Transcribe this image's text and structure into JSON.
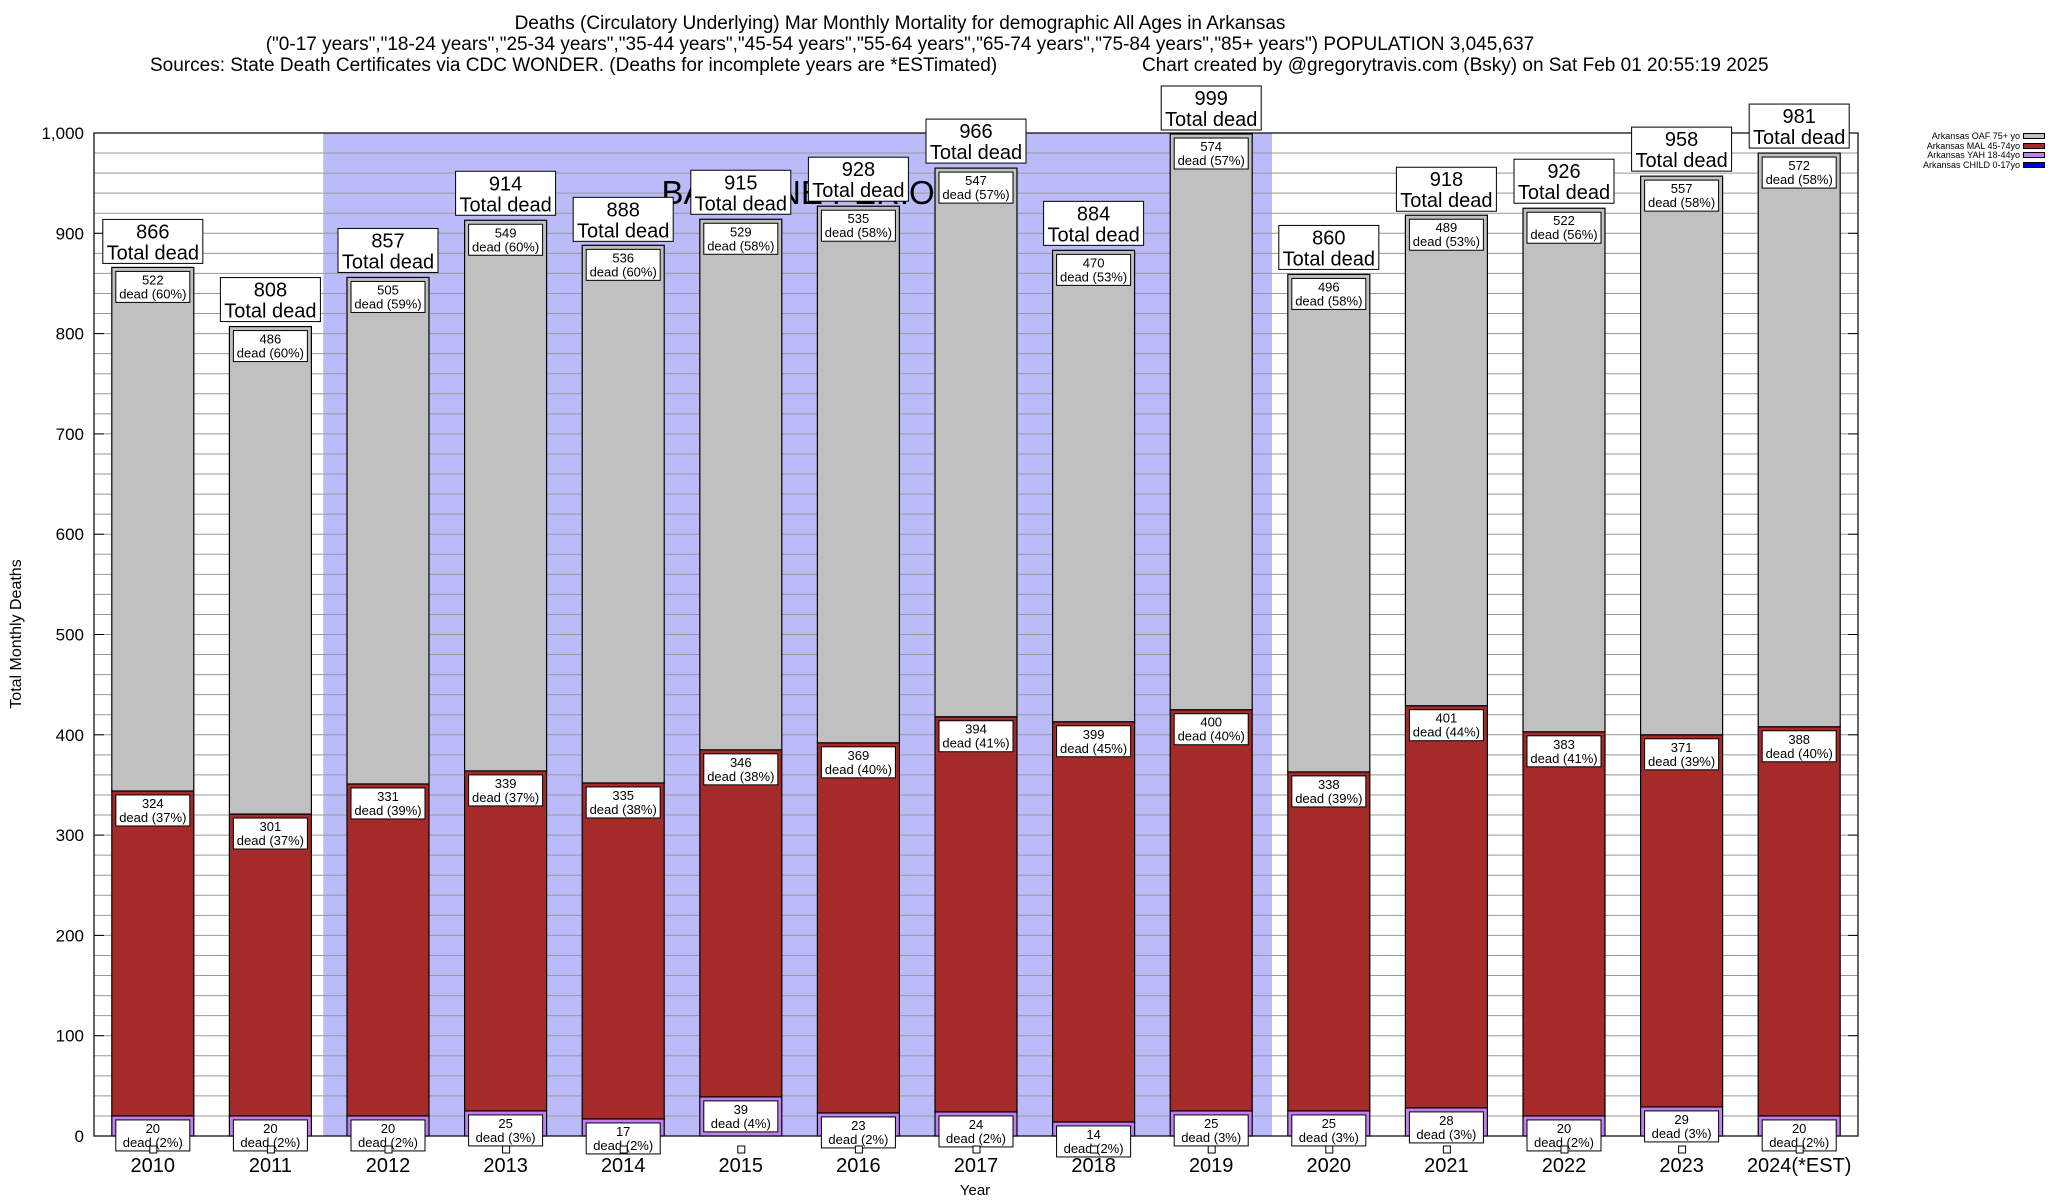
{
  "header": {
    "title": "Deaths (Circulatory Underlying) Mar Monthly Mortality for demographic All Ages in Arkansas",
    "subtitle": "(\"0-17 years\",\"18-24 years\",\"25-34 years\",\"35-44 years\",\"45-54 years\",\"55-64 years\",\"65-74 years\",\"75-84 years\",\"85+ years\") POPULATION 3,045,637",
    "sources": "Sources: State Death Certificates via CDC WONDER. (Deaths for incomplete years are *ESTimated)",
    "credit": "Chart created by @gregorytravis.com (Bsky) on Sat Feb 01 20:55:19 2025"
  },
  "chart_data": {
    "type": "bar",
    "stacked": true,
    "title": "Deaths (Circulatory Underlying) Mar Monthly Mortality for demographic All Ages in Arkansas",
    "xlabel": "Year",
    "ylabel": "Total Monthly Deaths",
    "ylim": [
      0,
      1000
    ],
    "yticks": [
      0,
      100,
      200,
      300,
      400,
      500,
      600,
      700,
      800,
      900,
      1000
    ],
    "ytick_labels": [
      "0",
      "100",
      "200",
      "300",
      "400",
      "500",
      "600",
      "700",
      "800",
      "900",
      "1,000"
    ],
    "grid": true,
    "legend_position": "top-right",
    "categories": [
      "2010",
      "2011",
      "2012",
      "2013",
      "2014",
      "2015",
      "2016",
      "2017",
      "2018",
      "2019",
      "2020",
      "2021",
      "2022",
      "2023",
      "2024(*EST)"
    ],
    "baseline_period": {
      "label": "BASELINE PERIOD",
      "start": "2012",
      "end": "2019",
      "color": "#bbbbf9"
    },
    "total_label_suffix": "Total dead",
    "segment_label_suffix": "dead",
    "totals": [
      866,
      808,
      857,
      914,
      888,
      915,
      928,
      966,
      884,
      999,
      860,
      918,
      926,
      958,
      981
    ],
    "series": [
      {
        "name": "Arkansas CHILD 0-17yo",
        "color": "#0000cc",
        "values": [
          0,
          0,
          0,
          0,
          0,
          0,
          0,
          0,
          0,
          0,
          0,
          0,
          0,
          0,
          0
        ],
        "pct": []
      },
      {
        "name": "Arkansas YAH 18-44yo",
        "color": "#c080f0",
        "values": [
          20,
          20,
          20,
          25,
          17,
          39,
          23,
          24,
          14,
          25,
          25,
          28,
          20,
          29,
          20
        ],
        "pct": [
          "2%",
          "2%",
          "2%",
          "3%",
          "2%",
          "4%",
          "2%",
          "2%",
          "2%",
          "3%",
          "3%",
          "3%",
          "2%",
          "3%",
          "2%"
        ]
      },
      {
        "name": "Arkansas MAL 45-74yo",
        "color": "#a52a2a",
        "values": [
          324,
          301,
          331,
          339,
          335,
          346,
          369,
          394,
          399,
          400,
          338,
          401,
          383,
          371,
          388
        ],
        "pct": [
          "37%",
          "37%",
          "39%",
          "37%",
          "38%",
          "38%",
          "40%",
          "41%",
          "45%",
          "40%",
          "39%",
          "44%",
          "41%",
          "39%",
          "40%"
        ]
      },
      {
        "name": "Arkansas OAF 75+ yo",
        "color": "#c0c0c0",
        "values": [
          522,
          486,
          505,
          549,
          536,
          529,
          535,
          547,
          470,
          574,
          496,
          489,
          522,
          557,
          572
        ],
        "pct": [
          "60%",
          "60%",
          "59%",
          "60%",
          "60%",
          "58%",
          "58%",
          "57%",
          "53%",
          "57%",
          "58%",
          "53%",
          "56%",
          "58%",
          "58%"
        ]
      }
    ]
  }
}
